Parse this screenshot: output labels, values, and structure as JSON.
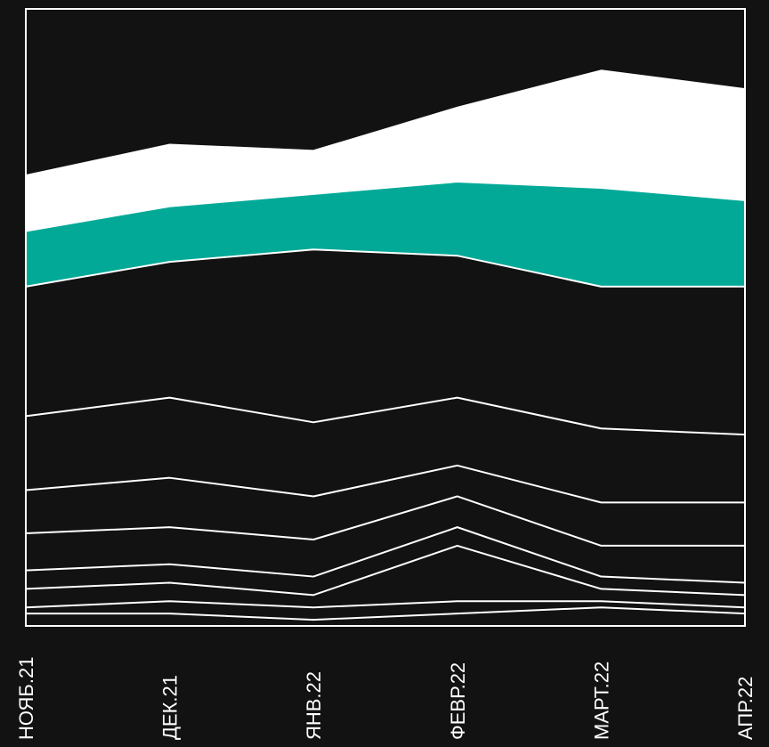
{
  "chart_data": {
    "type": "area",
    "stacked": true,
    "categories": [
      "НОЯБ.21",
      "ДЕК.21",
      "ЯНВ.22",
      "ФЕВР.22",
      "МАРТ.22",
      "АПР.22"
    ],
    "ylim": [
      0,
      100
    ],
    "grid": false,
    "legend": "none",
    "series": [
      {
        "values": [
          2,
          2,
          1,
          2,
          3,
          2
        ],
        "fill": "#121212"
      },
      {
        "values": [
          1,
          2,
          2,
          2,
          1,
          1
        ],
        "fill": "#121212"
      },
      {
        "values": [
          3,
          3,
          2,
          9,
          2,
          2
        ],
        "fill": "#121212"
      },
      {
        "values": [
          3,
          3,
          3,
          3,
          2,
          2
        ],
        "fill": "#121212"
      },
      {
        "values": [
          6,
          6,
          6,
          5,
          5,
          6
        ],
        "fill": "#121212"
      },
      {
        "values": [
          7,
          8,
          7,
          5,
          7,
          7
        ],
        "fill": "#121212"
      },
      {
        "values": [
          12,
          13,
          12,
          11,
          12,
          11
        ],
        "fill": "#121212"
      },
      {
        "values": [
          21,
          22,
          28,
          23,
          23,
          24
        ],
        "fill": "#121212"
      },
      {
        "values": [
          9,
          9,
          9,
          12,
          16,
          14
        ],
        "fill": "#02a997"
      },
      {
        "values": [
          9,
          10,
          7,
          12,
          19,
          18
        ],
        "fill": "#ffffff"
      },
      {
        "values": [
          27,
          22,
          23,
          14,
          10,
          13
        ],
        "fill": "#121212"
      }
    ]
  }
}
